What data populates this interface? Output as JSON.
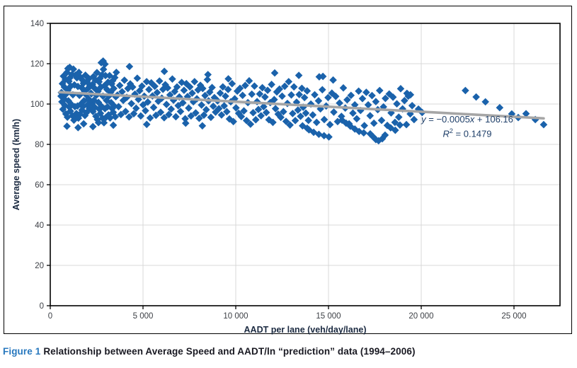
{
  "caption": {
    "figure_label": "Figure 1",
    "text": "Relationship between Average Speed and AADT/ln “prediction” data (1994–2006)"
  },
  "annotation": {
    "line1_y": "y",
    "line1_mid": " = −0.0005",
    "line1_x": "x",
    "line1_post": " + 106.16",
    "line2_r": "R",
    "line2_sup": "2",
    "line2_rest": " = 0.1479"
  },
  "colors": {
    "point": "#1a62ab",
    "trend": "#a6a6a6",
    "grid": "#d9d9d9",
    "axis": "#000000",
    "tick_label": "#3d4046",
    "axis_title": "#1b2a41"
  },
  "chart_data": {
    "type": "scatter",
    "title": "",
    "xlabel": "AADT per lane (veh/day/lane)",
    "ylabel": "Average speed (km/h)",
    "xlim": [
      0,
      27480
    ],
    "ylim": [
      0,
      140
    ],
    "grid": true,
    "x_ticks": [
      0,
      5000,
      10000,
      15000,
      20000,
      25000
    ],
    "x_tick_labels": [
      "0",
      "5 000",
      "10 000",
      "15 000",
      "20 000",
      "25 000"
    ],
    "y_ticks": [
      0,
      20,
      40,
      60,
      80,
      100,
      120,
      140
    ],
    "y_tick_labels": [
      "0",
      "20",
      "40",
      "60",
      "80",
      "100",
      "120",
      "140"
    ],
    "trendline": {
      "equation": "y = -0.0005x + 106.16",
      "r_squared": 0.1479,
      "x1": 500,
      "y1": 105.9,
      "x2": 26600,
      "y2": 92.9
    },
    "points": [
      [
        600,
        105.7
      ],
      [
        627,
        101.1
      ],
      [
        654,
        110.1
      ],
      [
        681,
        97.4
      ],
      [
        708,
        113.8
      ],
      [
        735,
        102.7
      ],
      [
        762,
        108.4
      ],
      [
        789,
        99.3
      ],
      [
        816,
        112.2
      ],
      [
        843,
        95.1
      ],
      [
        870,
        105.1
      ],
      [
        897,
        115.7
      ],
      [
        924,
        93.5
      ],
      [
        951,
        106.9
      ],
      [
        978,
        101.6
      ],
      [
        1005,
        111.3
      ],
      [
        1032,
        98.4
      ],
      [
        1059,
        113.0
      ],
      [
        1086,
        96.5
      ],
      [
        1113,
        108.9
      ],
      [
        1140,
        99.8
      ],
      [
        1167,
        114.6
      ],
      [
        1194,
        94.2
      ],
      [
        1221,
        104.6
      ],
      [
        1248,
        117.3
      ],
      [
        1275,
        92.0
      ],
      [
        1302,
        109.5
      ],
      [
        1329,
        98.7
      ],
      [
        1356,
        114.3
      ],
      [
        1383,
        94.6
      ],
      [
        1410,
        95.3
      ],
      [
        1437,
        113.0
      ],
      [
        1464,
        99.0
      ],
      [
        1491,
        108.7
      ],
      [
        1518,
        93.0
      ],
      [
        1545,
        115.7
      ],
      [
        1572,
        104.3
      ],
      [
        1599,
        94.9
      ],
      [
        1626,
        113.3
      ],
      [
        1653,
        100.0
      ],
      [
        1680,
        108.2
      ],
      [
        1707,
        97.0
      ],
      [
        1734,
        111.9
      ],
      [
        1761,
        98.7
      ],
      [
        1788,
        110.3
      ],
      [
        1815,
        101.6
      ],
      [
        1842,
        106.4
      ],
      [
        1869,
        94.3
      ],
      [
        1896,
        114.3
      ],
      [
        1923,
        104.7
      ],
      [
        1950,
        95.7
      ],
      [
        1977,
        111.1
      ],
      [
        2004,
        99.5
      ],
      [
        2031,
        107.7
      ],
      [
        2058,
        102.6
      ],
      [
        2085,
        112.6
      ],
      [
        2112,
        97.8
      ],
      [
        2139,
        109.2
      ],
      [
        2166,
        101.1
      ],
      [
        2193,
        105.3
      ],
      [
        2220,
        105.1
      ],
      [
        2247,
        100.2
      ],
      [
        2274,
        109.7
      ],
      [
        2301,
        96.3
      ],
      [
        2328,
        113.6
      ],
      [
        2355,
        101.9
      ],
      [
        2382,
        107.9
      ],
      [
        2409,
        98.3
      ],
      [
        2436,
        111.9
      ],
      [
        2463,
        93.9
      ],
      [
        2490,
        104.4
      ],
      [
        2517,
        115.6
      ],
      [
        2544,
        92.3
      ],
      [
        2571,
        106.3
      ],
      [
        2598,
        100.8
      ],
      [
        2625,
        111.0
      ],
      [
        2652,
        97.4
      ],
      [
        2679,
        112.7
      ],
      [
        2706,
        95.4
      ],
      [
        2733,
        108.4
      ],
      [
        2760,
        98.9
      ],
      [
        2787,
        114.4
      ],
      [
        2814,
        93.0
      ],
      [
        2841,
        103.9
      ],
      [
        2868,
        117.2
      ],
      [
        2895,
        90.7
      ],
      [
        2922,
        109.1
      ],
      [
        2949,
        97.7
      ],
      [
        2976,
        114.1
      ],
      [
        3003,
        93.4
      ],
      [
        3030,
        101.8
      ],
      [
        3058,
        107.2
      ],
      [
        3086,
        98.6
      ],
      [
        3114,
        110.8
      ],
      [
        3142,
        94.6
      ],
      [
        3170,
        104.1
      ],
      [
        3198,
        114.1
      ],
      [
        3226,
        93.1
      ],
      [
        3254,
        105.8
      ],
      [
        3282,
        100.7
      ],
      [
        3310,
        110.0
      ],
      [
        3338,
        97.7
      ],
      [
        3366,
        111.6
      ],
      [
        3394,
        95.9
      ],
      [
        3422,
        107.7
      ],
      [
        3450,
        99.0
      ],
      [
        3478,
        113.1
      ],
      [
        3506,
        93.7
      ],
      [
        3534,
        103.6
      ],
      [
        3562,
        115.7
      ],
      [
        2750,
        120.5
      ],
      [
        2850,
        121.3
      ],
      [
        2950,
        119.8
      ],
      [
        1050,
        118.2
      ],
      [
        950,
        117.6
      ],
      [
        900,
        89.0
      ],
      [
        1500,
        88.3
      ],
      [
        2300,
        88.8
      ],
      [
        3400,
        89.5
      ],
      [
        700,
        104.8
      ],
      [
        620,
        105.5
      ],
      [
        580,
        103.9
      ],
      [
        1800,
        90.2
      ],
      [
        2600,
        90.8
      ],
      [
        3620,
        104.4
      ],
      [
        3683,
        98.7
      ],
      [
        3746,
        109.2
      ],
      [
        3809,
        94.8
      ],
      [
        3872,
        106.1
      ],
      [
        3935,
        101.8
      ],
      [
        3998,
        111.8
      ],
      [
        4061,
        96.3
      ],
      [
        4124,
        103.3
      ],
      [
        4187,
        107.7
      ],
      [
        4250,
        93.6
      ],
      [
        4313,
        110.0
      ],
      [
        4376,
        100.2
      ],
      [
        4439,
        108.4
      ],
      [
        4502,
        95.2
      ],
      [
        4565,
        104.9
      ],
      [
        4628,
        97.9
      ],
      [
        4691,
        112.8
      ],
      [
        4754,
        102.3
      ],
      [
        4817,
        106.6
      ],
      [
        4880,
        94.1
      ],
      [
        4943,
        108.9
      ],
      [
        5006,
        99.6
      ],
      [
        5069,
        103.9
      ],
      [
        5132,
        96.7
      ],
      [
        5195,
        111.1
      ],
      [
        5258,
        101.0
      ],
      [
        5321,
        107.2
      ],
      [
        5384,
        93.1
      ],
      [
        5447,
        110.5
      ],
      [
        5510,
        104.0
      ],
      [
        5573,
        98.3
      ],
      [
        5636,
        108.8
      ],
      [
        5699,
        94.4
      ],
      [
        5762,
        105.7
      ],
      [
        5825,
        101.4
      ],
      [
        5888,
        111.4
      ],
      [
        5951,
        95.9
      ],
      [
        6014,
        102.9
      ],
      [
        6077,
        107.3
      ],
      [
        6140,
        93.2
      ],
      [
        6203,
        109.6
      ],
      [
        6266,
        99.8
      ],
      [
        6329,
        108.0
      ],
      [
        6392,
        94.8
      ],
      [
        6455,
        104.5
      ],
      [
        6518,
        97.5
      ],
      [
        6581,
        112.4
      ],
      [
        6644,
        101.9
      ],
      [
        6707,
        106.2
      ],
      [
        6770,
        93.7
      ],
      [
        6833,
        108.5
      ],
      [
        6896,
        99.2
      ],
      [
        6959,
        103.5
      ],
      [
        7022,
        96.3
      ],
      [
        7085,
        110.7
      ],
      [
        7148,
        100.6
      ],
      [
        7211,
        106.8
      ],
      [
        7274,
        92.7
      ],
      [
        7337,
        110.1
      ],
      [
        7400,
        103.7
      ],
      [
        7463,
        98.0
      ],
      [
        7526,
        108.5
      ],
      [
        7589,
        94.1
      ],
      [
        7652,
        105.4
      ],
      [
        7715,
        101.1
      ],
      [
        7778,
        111.1
      ],
      [
        7841,
        95.6
      ],
      [
        7904,
        102.6
      ],
      [
        7967,
        107.0
      ],
      [
        8030,
        92.9
      ],
      [
        8093,
        109.3
      ],
      [
        8156,
        99.5
      ],
      [
        8219,
        107.7
      ],
      [
        8282,
        94.5
      ],
      [
        8345,
        104.2
      ],
      [
        8408,
        97.2
      ],
      [
        8471,
        112.1
      ],
      [
        8534,
        101.6
      ],
      [
        8597,
        105.9
      ],
      [
        8660,
        93.4
      ],
      [
        8723,
        108.2
      ],
      [
        8786,
        98.9
      ],
      [
        8849,
        103.2
      ],
      [
        8912,
        96.0
      ],
      [
        4270,
        118.6
      ],
      [
        6150,
        116.2
      ],
      [
        8500,
        114.6
      ],
      [
        5200,
        89.9
      ],
      [
        7300,
        90.5
      ],
      [
        8200,
        89.2
      ],
      [
        9020,
        101.6
      ],
      [
        9091,
        97.7
      ],
      [
        9162,
        105.4
      ],
      [
        9233,
        94.6
      ],
      [
        9304,
        108.5
      ],
      [
        9375,
        99.1
      ],
      [
        9446,
        103.9
      ],
      [
        9517,
        96.2
      ],
      [
        9588,
        107.2
      ],
      [
        9659,
        92.6
      ],
      [
        9730,
        101.1
      ],
      [
        9801,
        110.1
      ],
      [
        9872,
        91.3
      ],
      [
        9943,
        102.6
      ],
      [
        10014,
        98.1
      ],
      [
        10085,
        106.4
      ],
      [
        10156,
        95.4
      ],
      [
        10227,
        107.8
      ],
      [
        10298,
        93.8
      ],
      [
        10369,
        104.3
      ],
      [
        10440,
        96.6
      ],
      [
        10511,
        109.2
      ],
      [
        10582,
        91.8
      ],
      [
        10653,
        100.7
      ],
      [
        10724,
        111.5
      ],
      [
        10795,
        90.0
      ],
      [
        10866,
        104.9
      ],
      [
        10937,
        95.7
      ],
      [
        11008,
        108.9
      ],
      [
        11079,
        92.2
      ],
      [
        11150,
        101.2
      ],
      [
        11221,
        97.3
      ],
      [
        11292,
        105.0
      ],
      [
        11363,
        94.2
      ],
      [
        11434,
        108.1
      ],
      [
        11505,
        98.7
      ],
      [
        11576,
        103.5
      ],
      [
        11647,
        95.8
      ],
      [
        11718,
        106.8
      ],
      [
        11789,
        92.2
      ],
      [
        11860,
        100.7
      ],
      [
        11931,
        109.7
      ],
      [
        12002,
        90.9
      ],
      [
        12073,
        102.2
      ],
      [
        12144,
        97.7
      ],
      [
        12215,
        106.0
      ],
      [
        12286,
        95.0
      ],
      [
        12357,
        107.4
      ],
      [
        12428,
        93.4
      ],
      [
        12499,
        103.9
      ],
      [
        12570,
        96.2
      ],
      [
        12641,
        108.8
      ],
      [
        12712,
        91.4
      ],
      [
        12783,
        100.3
      ],
      [
        12854,
        111.1
      ],
      [
        12925,
        89.6
      ],
      [
        12996,
        104.5
      ],
      [
        13067,
        95.3
      ],
      [
        13138,
        108.5
      ],
      [
        13209,
        91.8
      ],
      [
        13280,
        100.9
      ],
      [
        13351,
        97.0
      ],
      [
        13422,
        104.7
      ],
      [
        13493,
        93.9
      ],
      [
        13564,
        107.8
      ],
      [
        13635,
        98.4
      ],
      [
        13706,
        103.2
      ],
      [
        13777,
        95.5
      ],
      [
        13848,
        106.5
      ],
      [
        13919,
        91.9
      ],
      [
        12100,
        115.4
      ],
      [
        13400,
        114.2
      ],
      [
        9600,
        112.5
      ],
      [
        13600,
        89.2
      ],
      [
        13850,
        88.0
      ],
      [
        14050,
        100.0
      ],
      [
        14153,
        94.6
      ],
      [
        14256,
        104.6
      ],
      [
        14359,
        90.9
      ],
      [
        14462,
        101.6
      ],
      [
        14565,
        97.6
      ],
      [
        14668,
        107.1
      ],
      [
        14771,
        92.3
      ],
      [
        14874,
        99.0
      ],
      [
        14977,
        103.2
      ],
      [
        15080,
        89.8
      ],
      [
        15183,
        105.4
      ],
      [
        15286,
        96.0
      ],
      [
        15389,
        103.8
      ],
      [
        15492,
        91.3
      ],
      [
        15595,
        100.5
      ],
      [
        15698,
        93.9
      ],
      [
        15801,
        108.0
      ],
      [
        15904,
        98.0
      ],
      [
        16007,
        102.1
      ],
      [
        16110,
        90.2
      ],
      [
        16213,
        104.3
      ],
      [
        16316,
        95.5
      ],
      [
        16419,
        99.6
      ],
      [
        16522,
        92.7
      ],
      [
        16625,
        106.4
      ],
      [
        16728,
        96.8
      ],
      [
        16831,
        102.7
      ],
      [
        16934,
        89.3
      ],
      [
        17037,
        105.8
      ],
      [
        17140,
        99.6
      ],
      [
        17243,
        94.2
      ],
      [
        17346,
        104.2
      ],
      [
        17449,
        90.5
      ],
      [
        17552,
        101.2
      ],
      [
        17655,
        97.2
      ],
      [
        17758,
        106.7
      ],
      [
        17861,
        91.9
      ],
      [
        17964,
        98.6
      ],
      [
        18067,
        102.8
      ],
      [
        18170,
        89.4
      ],
      [
        18273,
        105.0
      ],
      [
        18376,
        95.6
      ],
      [
        18479,
        103.4
      ],
      [
        18582,
        90.9
      ],
      [
        18685,
        100.1
      ],
      [
        18788,
        93.5
      ],
      [
        18891,
        107.6
      ],
      [
        18994,
        97.6
      ],
      [
        19097,
        101.7
      ],
      [
        19200,
        89.8
      ],
      [
        19303,
        103.9
      ],
      [
        19406,
        95.1
      ],
      [
        19509,
        99.2
      ],
      [
        19612,
        92.3
      ],
      [
        14500,
        113.5
      ],
      [
        14700,
        113.7
      ],
      [
        15250,
        111.9
      ],
      [
        19230,
        105.3
      ],
      [
        19420,
        104.6
      ],
      [
        15730,
        92.0
      ],
      [
        15950,
        90.5
      ],
      [
        16180,
        89.0
      ],
      [
        16420,
        87.6
      ],
      [
        16650,
        86.4
      ],
      [
        16900,
        85.7
      ],
      [
        17250,
        85.2
      ],
      [
        17400,
        83.8
      ],
      [
        17550,
        82.4
      ],
      [
        17700,
        81.8
      ],
      [
        17900,
        82.8
      ],
      [
        18050,
        84.6
      ],
      [
        18350,
        88.2
      ],
      [
        18600,
        87.0
      ],
      [
        18850,
        89.6
      ],
      [
        19850,
        97.5
      ],
      [
        20050,
        95.8
      ],
      [
        13950,
        87.2
      ],
      [
        14200,
        86.0
      ],
      [
        14480,
        85.0
      ],
      [
        14760,
        84.3
      ],
      [
        15020,
        83.7
      ],
      [
        22380,
        106.7
      ],
      [
        22960,
        103.5
      ],
      [
        23460,
        101.1
      ],
      [
        24230,
        98.2
      ],
      [
        24880,
        95.1
      ],
      [
        25230,
        93.3
      ],
      [
        25650,
        95.2
      ],
      [
        26150,
        92.3
      ],
      [
        26600,
        89.8
      ]
    ]
  }
}
